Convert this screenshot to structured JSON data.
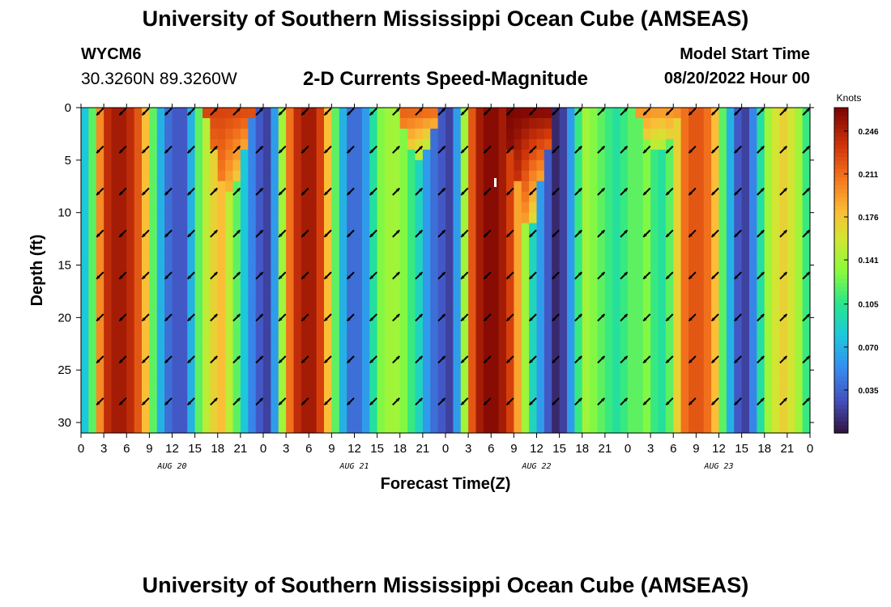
{
  "header": {
    "title": "University of Southern Mississippi Ocean Cube (AMSEAS)",
    "station_id": "WYCM6",
    "coords": "30.3260N  89.3260W",
    "subtitle": "2-D Currents Speed-Magnitude",
    "start_label": "Model Start Time",
    "start_value": "08/20/2022 Hour 00"
  },
  "footer": {
    "title": "University of Southern Mississippi Ocean Cube (AMSEAS)"
  },
  "chart_data": {
    "type": "heatmap",
    "title": "2-D Currents Speed-Magnitude",
    "xlabel": "Forecast Time(Z)",
    "ylabel": "Depth (ft)",
    "x_hours_range": [
      0,
      96
    ],
    "ylim": [
      0,
      31
    ],
    "x_tick_labels": [
      "0",
      "3",
      "6",
      "9",
      "12",
      "15",
      "18",
      "21",
      "0",
      "3",
      "6",
      "9",
      "12",
      "15",
      "18",
      "21",
      "0",
      "3",
      "6",
      "9",
      "12",
      "15",
      "18",
      "21",
      "0",
      "3",
      "6",
      "9",
      "12",
      "15",
      "18",
      "21",
      "0"
    ],
    "y_ticks": [
      0,
      5,
      10,
      15,
      20,
      25,
      30
    ],
    "day_labels": [
      {
        "label": "AUG 20",
        "hour": 12
      },
      {
        "label": "AUG 21",
        "hour": 36
      },
      {
        "label": "AUG 22",
        "hour": 60
      },
      {
        "label": "AUG 23",
        "hour": 84
      }
    ],
    "colorbar": {
      "unit": "Knots",
      "min": 0.0,
      "max": 0.265,
      "ticks": [
        0.035,
        0.07,
        0.105,
        0.141,
        0.176,
        0.211,
        0.246
      ],
      "tick_labels": [
        "0.035",
        "0.070",
        "0.105",
        "0.141",
        "0.176",
        "0.211",
        "0.246"
      ]
    },
    "speed_by_hour": [
      0.08,
      0.12,
      0.2,
      0.24,
      0.25,
      0.25,
      0.24,
      0.22,
      0.18,
      0.12,
      0.07,
      0.04,
      0.03,
      0.03,
      0.07,
      0.12,
      0.15,
      0.17,
      0.18,
      0.15,
      0.12,
      0.08,
      0.05,
      0.03,
      0.02,
      0.06,
      0.14,
      0.21,
      0.24,
      0.25,
      0.25,
      0.23,
      0.18,
      0.12,
      0.07,
      0.04,
      0.04,
      0.06,
      0.1,
      0.13,
      0.14,
      0.14,
      0.13,
      0.11,
      0.09,
      0.06,
      0.04,
      0.03,
      0.02,
      0.06,
      0.14,
      0.22,
      0.25,
      0.26,
      0.26,
      0.25,
      0.23,
      0.19,
      0.14,
      0.09,
      0.06,
      0.03,
      0.01,
      0.02,
      0.06,
      0.11,
      0.14,
      0.13,
      0.12,
      0.11,
      0.1,
      0.11,
      0.12,
      0.12,
      0.13,
      0.11,
      0.1,
      0.12,
      0.17,
      0.21,
      0.22,
      0.22,
      0.21,
      0.18,
      0.12,
      0.07,
      0.03,
      0.02,
      0.05,
      0.1,
      0.14,
      0.16,
      0.17,
      0.16,
      0.14,
      0.11,
      0.08
    ],
    "surface_anomalies": [
      {
        "hour": 19.5,
        "half_width": 3,
        "depth_max": 8,
        "value": 0.23
      },
      {
        "hour": 44.5,
        "half_width": 2.5,
        "depth_max": 5,
        "value": 0.22
      },
      {
        "hour": 59,
        "half_width": 3,
        "depth_max": 11,
        "value": 0.265
      },
      {
        "hour": 76,
        "half_width": 3,
        "depth_max": 4,
        "value": 0.2
      }
    ],
    "vector_depths": [
      0,
      4,
      8,
      12,
      16,
      20,
      24,
      28
    ],
    "vector_hours": [
      2.5,
      5.5,
      8.5,
      11.5,
      14.5,
      17.5,
      20.5,
      23.5,
      26.5,
      29.5,
      32.5,
      35.5,
      38.5,
      41.5,
      44.5,
      47.5,
      50.5,
      53.5,
      56.5,
      59.5,
      62.5,
      65.5,
      68.5,
      71.5,
      74.5,
      77.5,
      80.5,
      83.5,
      86.5,
      89.5,
      92.5,
      95.5
    ],
    "vector_directions_deg": [
      225,
      225,
      225,
      225,
      225,
      45,
      45,
      45,
      225,
      225,
      225,
      225,
      225,
      45,
      45,
      45,
      225,
      225,
      225,
      225,
      225,
      45,
      45,
      45,
      225,
      225,
      225,
      225,
      225,
      45,
      45,
      45
    ]
  }
}
